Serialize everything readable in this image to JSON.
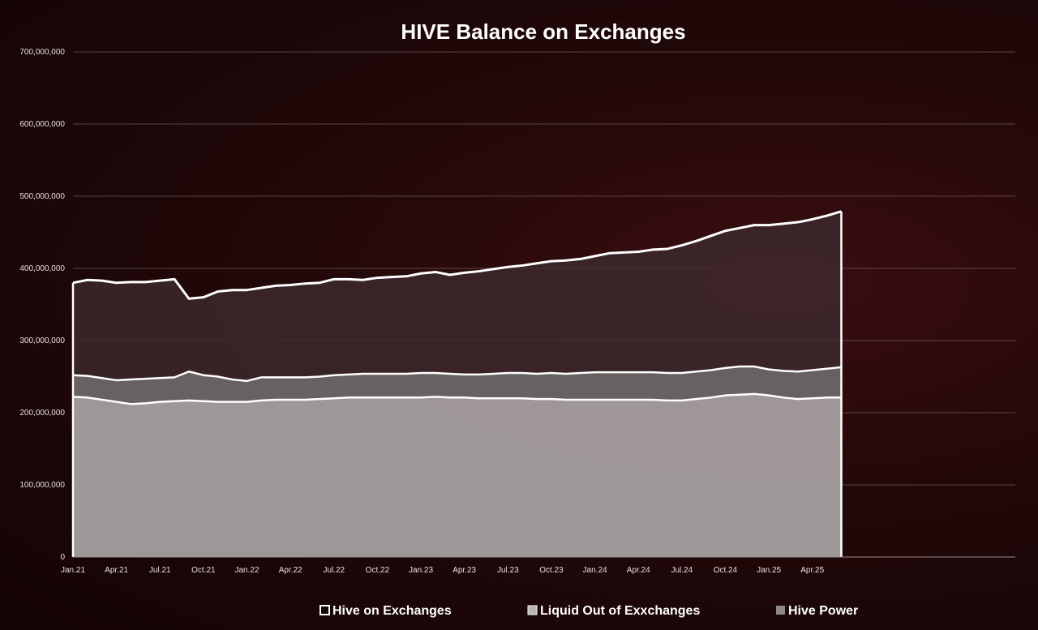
{
  "chart_data": {
    "type": "area",
    "title": "HIVE Balance on Exchanges",
    "xlabel": "",
    "ylabel": "",
    "stacked": true,
    "ylim": [
      0,
      700000000
    ],
    "y_tick_values": [
      0,
      100000000,
      200000000,
      300000000,
      400000000,
      500000000,
      600000000,
      700000000
    ],
    "y_tick_labels": [
      "0",
      "100,000,000",
      "200,000,000",
      "300,000,000",
      "400,000,000",
      "500,000,000",
      "600,000,000",
      "700,000,000"
    ],
    "x_tick_labels": [
      "Jan.21",
      "Apr.21",
      "Jul.21",
      "Oct.21",
      "Jan.22",
      "Apr.22",
      "Jul.22",
      "Oct.22",
      "Jan.23",
      "Apr.23",
      "Jul.23",
      "Oct.23",
      "Jan.24",
      "Apr.24",
      "Jul.24",
      "Oct.24",
      "Jan.25",
      "Apr.25"
    ],
    "x_range_months": [
      0,
      65
    ],
    "grid": true,
    "legend_position": "bottom",
    "x": [
      "Jan.21",
      "Feb.21",
      "Mar.21",
      "Apr.21",
      "May.21",
      "Jun.21",
      "Jul.21",
      "Aug.21",
      "Sep.21",
      "Oct.21",
      "Nov.21",
      "Dec.21",
      "Jan.22",
      "Feb.22",
      "Mar.22",
      "Apr.22",
      "May.22",
      "Jun.22",
      "Jul.22",
      "Aug.22",
      "Sep.22",
      "Oct.22",
      "Nov.22",
      "Dec.22",
      "Jan.23",
      "Feb.23",
      "Mar.23",
      "Apr.23",
      "May.23",
      "Jun.23",
      "Jul.23",
      "Aug.23",
      "Sep.23",
      "Oct.23",
      "Nov.23",
      "Dec.23",
      "Jan.24",
      "Feb.24",
      "Mar.24",
      "Apr.24",
      "May.24",
      "Jun.24",
      "Jul.24",
      "Aug.24",
      "Sep.24",
      "Oct.24",
      "Nov.24",
      "Dec.24",
      "Jan.25",
      "Feb.25",
      "Mar.25",
      "Apr.25",
      "May.25",
      "Jun.25"
    ],
    "series": [
      {
        "name": "Hive Power",
        "color": "#a59f9f",
        "values": [
          222000000,
          221000000,
          218000000,
          215000000,
          212000000,
          213000000,
          215000000,
          216000000,
          217000000,
          216000000,
          215000000,
          215000000,
          215000000,
          217000000,
          218000000,
          218000000,
          218000000,
          219000000,
          220000000,
          221000000,
          221000000,
          221000000,
          221000000,
          221000000,
          221000000,
          222000000,
          221000000,
          221000000,
          220000000,
          220000000,
          220000000,
          220000000,
          219000000,
          219000000,
          218000000,
          218000000,
          218000000,
          218000000,
          218000000,
          218000000,
          218000000,
          217000000,
          217000000,
          219000000,
          221000000,
          224000000,
          225000000,
          226000000,
          224000000,
          221000000,
          219000000,
          220000000,
          221000000,
          221000000
        ]
      },
      {
        "name": "Liquid Out of Exxchanges",
        "color": "#6b6666",
        "values": [
          30000000,
          30000000,
          30000000,
          30000000,
          34000000,
          34000000,
          33000000,
          33000000,
          40000000,
          36000000,
          35000000,
          31000000,
          29000000,
          32000000,
          31000000,
          31000000,
          31000000,
          31000000,
          32000000,
          32000000,
          33000000,
          33000000,
          33000000,
          33000000,
          34000000,
          33000000,
          33000000,
          32000000,
          33000000,
          34000000,
          35000000,
          35000000,
          35000000,
          36000000,
          36000000,
          37000000,
          38000000,
          38000000,
          38000000,
          38000000,
          38000000,
          38000000,
          38000000,
          38000000,
          38000000,
          38000000,
          39000000,
          38000000,
          36000000,
          37000000,
          38000000,
          39000000,
          40000000,
          42000000
        ]
      },
      {
        "name": "Hive on Exchanges",
        "color": "#3d2a2d",
        "values": [
          128000000,
          133000000,
          135000000,
          135000000,
          135000000,
          134000000,
          135000000,
          136000000,
          101000000,
          108000000,
          118000000,
          124000000,
          126000000,
          124000000,
          127000000,
          128000000,
          130000000,
          130000000,
          133000000,
          132000000,
          130000000,
          133000000,
          134000000,
          135000000,
          138000000,
          140000000,
          137000000,
          141000000,
          143000000,
          145000000,
          147000000,
          149000000,
          153000000,
          155000000,
          157000000,
          158000000,
          161000000,
          165000000,
          166000000,
          167000000,
          170000000,
          172000000,
          177000000,
          181000000,
          186000000,
          190000000,
          192000000,
          196000000,
          200000000,
          204000000,
          207000000,
          209000000,
          212000000,
          216000000
        ]
      }
    ]
  }
}
